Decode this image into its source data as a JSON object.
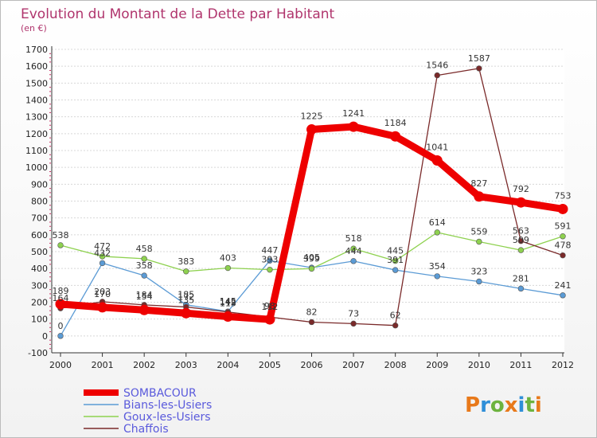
{
  "chart_data": {
    "type": "line",
    "title": "Evolution du Montant de la Dette par Habitant",
    "subtitle": "(en €)",
    "xlabel": "",
    "ylabel": "",
    "x": [
      "2000",
      "2001",
      "2002",
      "2003",
      "2004",
      "2005",
      "2006",
      "2007",
      "2008",
      "2009",
      "2010",
      "2011",
      "2012"
    ],
    "ylim": [
      -100,
      1700
    ],
    "yticks": [
      "-100",
      "0",
      "100",
      "200",
      "300",
      "400",
      "500",
      "600",
      "700",
      "800",
      "900",
      "1000",
      "1100",
      "1200",
      "1300",
      "1400",
      "1500",
      "1600",
      "1700"
    ],
    "grid": true,
    "series": [
      {
        "name": "SOMBACOUR",
        "color": "#ee0000",
        "values": [
          189,
          170,
          154,
          135,
          115,
          98,
          1225,
          1241,
          1184,
          1041,
          827,
          792,
          753
        ]
      },
      {
        "name": "Bians-les-Usiers",
        "color": "#5b9bd5",
        "values": [
          0,
          432,
          358,
          185,
          145,
          447,
          405,
          444,
          391,
          354,
          323,
          281,
          241
        ]
      },
      {
        "name": "Goux-les-Usiers",
        "color": "#8ed14f",
        "values": [
          538,
          472,
          458,
          383,
          403,
          393,
          399,
          518,
          445,
          614,
          559,
          509,
          591
        ]
      },
      {
        "name": "Chaffois",
        "color": "#7a2a2a",
        "values": [
          164,
          203,
          184,
          172,
          142,
          112,
          82,
          73,
          62,
          1546,
          1587,
          563,
          478
        ]
      }
    ]
  },
  "brand": {
    "text": "Proxiti"
  }
}
